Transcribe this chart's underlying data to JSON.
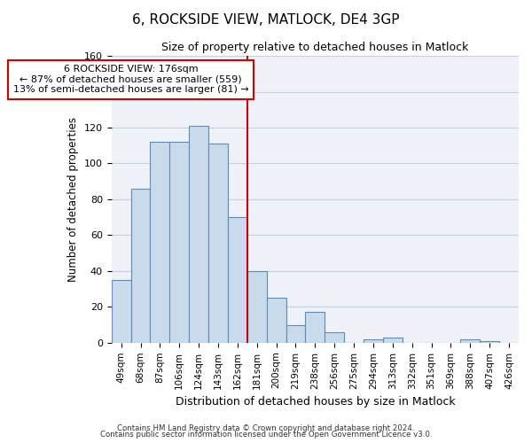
{
  "title": "6, ROCKSIDE VIEW, MATLOCK, DE4 3GP",
  "subtitle": "Size of property relative to detached houses in Matlock",
  "xlabel": "Distribution of detached houses by size in Matlock",
  "ylabel": "Number of detached properties",
  "categories": [
    "49sqm",
    "68sqm",
    "87sqm",
    "106sqm",
    "124sqm",
    "143sqm",
    "162sqm",
    "181sqm",
    "200sqm",
    "219sqm",
    "238sqm",
    "256sqm",
    "275sqm",
    "294sqm",
    "313sqm",
    "332sqm",
    "351sqm",
    "369sqm",
    "388sqm",
    "407sqm",
    "426sqm"
  ],
  "values": [
    35,
    86,
    112,
    112,
    121,
    111,
    70,
    40,
    25,
    10,
    17,
    6,
    0,
    2,
    3,
    0,
    0,
    0,
    2,
    1,
    0
  ],
  "bar_color": "#c9daea",
  "bar_edge_color": "#5b8db8",
  "grid_color": "#c8d0dc",
  "bg_color": "#eef1f7",
  "vline_x_index": 7,
  "vline_color": "#cc0000",
  "annotation_text": "6 ROCKSIDE VIEW: 176sqm\n← 87% of detached houses are smaller (559)\n13% of semi-detached houses are larger (81) →",
  "annotation_box_color": "#ffffff",
  "annotation_box_edge": "#cc0000",
  "ylim": [
    0,
    160
  ],
  "yticks": [
    0,
    20,
    40,
    60,
    80,
    100,
    120,
    140,
    160
  ],
  "footer1": "Contains HM Land Registry data © Crown copyright and database right 2024.",
  "footer2": "Contains public sector information licensed under the Open Government Licence v3.0."
}
